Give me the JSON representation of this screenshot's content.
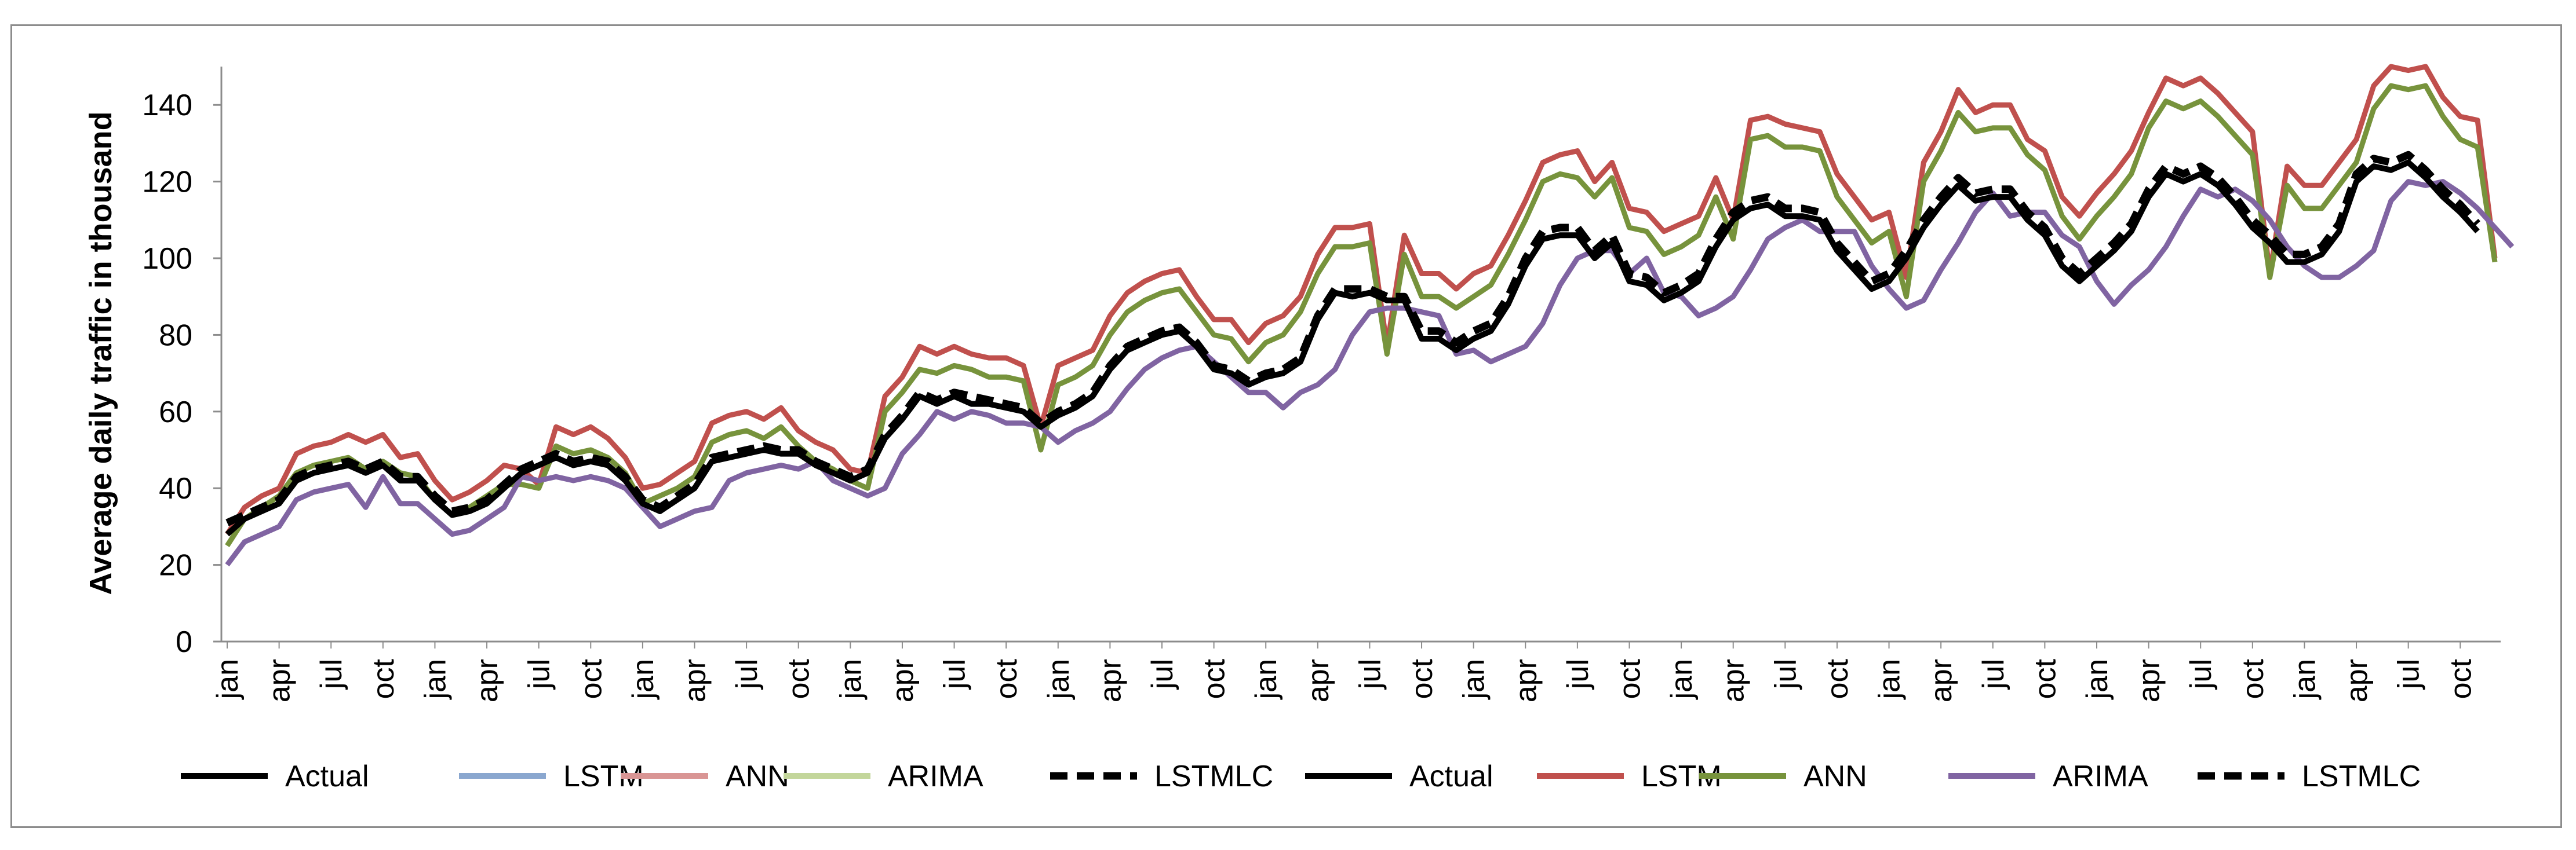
{
  "chart_data": {
    "type": "line",
    "title": "",
    "xlabel": "",
    "ylabel": "Average daily traffic in thousand",
    "ylim": [
      0,
      150
    ],
    "yticks": [
      0,
      20,
      40,
      60,
      80,
      100,
      120,
      140
    ],
    "grid": false,
    "legend_position": "bottom",
    "x_tick_labels": [
      "jan",
      "apr",
      "jul",
      "oct",
      "jan",
      "apr",
      "jul",
      "oct",
      "jan",
      "apr",
      "jul",
      "oct",
      "jan",
      "apr",
      "jul",
      "oct",
      "jan",
      "apr",
      "jul",
      "oct",
      "jan",
      "apr",
      "jul",
      "oct",
      "jan",
      "apr",
      "jul",
      "oct",
      "jan",
      "apr",
      "jul",
      "oct",
      "jan",
      "apr",
      "jul",
      "oct",
      "jan",
      "apr",
      "jul",
      "oct",
      "jan",
      "apr",
      "jul",
      "oct"
    ],
    "legend": [
      {
        "name": "Actual",
        "color": "#000000",
        "dash": false
      },
      {
        "name": "LSTM",
        "color": "#8aa7cf",
        "dash": false
      },
      {
        "name": "ANN",
        "color": "#d99594",
        "dash": false
      },
      {
        "name": "ARIMA",
        "color": "#c3d69b",
        "dash": false
      },
      {
        "name": "LSTMLC",
        "color": "#000000",
        "dash": true
      },
      {
        "name": "Actual",
        "color": "#000000",
        "dash": false
      },
      {
        "name": "LSTM",
        "color": "#c0504d",
        "dash": false
      },
      {
        "name": "ANN",
        "color": "#77933c",
        "dash": false
      },
      {
        "name": "ARIMA",
        "color": "#8064a2",
        "dash": false
      },
      {
        "name": "LSTMLC",
        "color": "#000000",
        "dash": true
      }
    ],
    "series": [
      {
        "name": "LSTM",
        "color": "#c0504d",
        "width": 9,
        "dash": false,
        "values": [
          28,
          35,
          38,
          40,
          49,
          51,
          52,
          54,
          52,
          54,
          48,
          49,
          42,
          37,
          39,
          42,
          46,
          45,
          41,
          56,
          54,
          56,
          53,
          48,
          40,
          41,
          44,
          47,
          57,
          59,
          60,
          58,
          61,
          55,
          52,
          50,
          45,
          44,
          64,
          69,
          77,
          75,
          77,
          75,
          74,
          74,
          72,
          56,
          72,
          74,
          76,
          85,
          91,
          94,
          96,
          97,
          90,
          84,
          84,
          78,
          83,
          85,
          90,
          101,
          108,
          108,
          109,
          77,
          106,
          96,
          96,
          92,
          96,
          98,
          106,
          115,
          125,
          127,
          128,
          120,
          125,
          113,
          112,
          107,
          109,
          111,
          121,
          110,
          136,
          137,
          135,
          134,
          133,
          122,
          116,
          110,
          112,
          95,
          125,
          133,
          144,
          138,
          140,
          140,
          131,
          128,
          116,
          111,
          117,
          122,
          128,
          138,
          147,
          145,
          147,
          143,
          138,
          133,
          96,
          124,
          119,
          119,
          125,
          131,
          145,
          150,
          149,
          150,
          142,
          137,
          136,
          100
        ]
      },
      {
        "name": "ANN",
        "color": "#77933c",
        "width": 9,
        "dash": false,
        "values": [
          25,
          32,
          35,
          38,
          44,
          46,
          47,
          48,
          45,
          47,
          44,
          43,
          37,
          33,
          35,
          38,
          41,
          41,
          40,
          51,
          49,
          50,
          48,
          44,
          36,
          38,
          40,
          43,
          52,
          54,
          55,
          53,
          56,
          51,
          47,
          45,
          42,
          40,
          60,
          65,
          71,
          70,
          72,
          71,
          69,
          69,
          68,
          50,
          67,
          69,
          72,
          80,
          86,
          89,
          91,
          92,
          86,
          80,
          79,
          73,
          78,
          80,
          86,
          96,
          103,
          103,
          104,
          75,
          101,
          90,
          90,
          87,
          90,
          93,
          101,
          110,
          120,
          122,
          121,
          116,
          121,
          108,
          107,
          101,
          103,
          106,
          116,
          105,
          131,
          132,
          129,
          129,
          128,
          116,
          110,
          104,
          107,
          90,
          120,
          128,
          138,
          133,
          134,
          134,
          127,
          123,
          111,
          105,
          111,
          116,
          122,
          134,
          141,
          139,
          141,
          137,
          132,
          127,
          95,
          119,
          113,
          113,
          119,
          125,
          139,
          145,
          144,
          145,
          137,
          131,
          129,
          99
        ]
      },
      {
        "name": "ARIMA",
        "color": "#8064a2",
        "width": 9,
        "dash": false,
        "values": [
          20,
          26,
          28,
          30,
          37,
          39,
          40,
          41,
          35,
          43,
          36,
          36,
          32,
          28,
          29,
          32,
          35,
          43,
          42,
          43,
          42,
          43,
          42,
          40,
          35,
          30,
          32,
          34,
          35,
          42,
          44,
          45,
          46,
          45,
          47,
          42,
          40,
          38,
          40,
          49,
          54,
          60,
          58,
          60,
          59,
          57,
          57,
          56,
          52,
          55,
          57,
          60,
          66,
          71,
          74,
          76,
          77,
          73,
          69,
          65,
          65,
          61,
          65,
          67,
          71,
          80,
          86,
          87,
          87,
          86,
          85,
          75,
          76,
          73,
          75,
          77,
          83,
          93,
          100,
          102,
          102,
          96,
          100,
          91,
          90,
          85,
          87,
          90,
          97,
          105,
          108,
          110,
          107,
          107,
          107,
          98,
          92,
          87,
          89,
          97,
          104,
          112,
          117,
          111,
          112,
          112,
          106,
          103,
          94,
          88,
          93,
          97,
          103,
          111,
          118,
          116,
          118,
          115,
          110,
          103,
          98,
          95,
          95,
          98,
          102,
          115,
          120,
          119,
          120,
          117,
          113,
          108,
          103
        ]
      },
      {
        "name": "Actual",
        "color": "#000000",
        "width": 10,
        "dash": false,
        "values": [
          28,
          32,
          34,
          36,
          42,
          44,
          45,
          46,
          44,
          46,
          42,
          42,
          37,
          33,
          34,
          36,
          40,
          44,
          46,
          48,
          46,
          47,
          46,
          42,
          36,
          34,
          37,
          40,
          47,
          48,
          49,
          50,
          49,
          49,
          46,
          44,
          42,
          44,
          53,
          58,
          64,
          62,
          64,
          62,
          62,
          61,
          60,
          56,
          59,
          61,
          64,
          71,
          76,
          78,
          80,
          81,
          77,
          71,
          70,
          67,
          69,
          70,
          73,
          84,
          91,
          90,
          91,
          89,
          89,
          79,
          79,
          76,
          79,
          81,
          88,
          98,
          105,
          106,
          106,
          100,
          104,
          94,
          93,
          89,
          91,
          94,
          103,
          110,
          113,
          114,
          111,
          111,
          110,
          102,
          97,
          92,
          94,
          100,
          108,
          114,
          119,
          115,
          116,
          116,
          110,
          106,
          98,
          94,
          98,
          102,
          107,
          116,
          122,
          120,
          122,
          119,
          114,
          108,
          104,
          99,
          99,
          101,
          107,
          120,
          124,
          123,
          125,
          121,
          116,
          112,
          107
        ]
      },
      {
        "name": "LSTMLC",
        "color": "#000000",
        "width": 13,
        "dash": true,
        "values": [
          31,
          33,
          35,
          37,
          43,
          45,
          46,
          47,
          45,
          47,
          43,
          43,
          38,
          34,
          35,
          37,
          41,
          45,
          47,
          49,
          47,
          48,
          47,
          43,
          37,
          35,
          38,
          41,
          48,
          49,
          50,
          51,
          50,
          50,
          47,
          45,
          43,
          45,
          54,
          59,
          65,
          63,
          65,
          64,
          63,
          62,
          61,
          57,
          60,
          62,
          65,
          72,
          77,
          79,
          81,
          82,
          78,
          72,
          71,
          68,
          70,
          71,
          74,
          85,
          92,
          92,
          92,
          90,
          90,
          81,
          81,
          78,
          81,
          83,
          90,
          100,
          107,
          108,
          108,
          102,
          106,
          96,
          95,
          91,
          93,
          96,
          105,
          112,
          115,
          116,
          113,
          113,
          112,
          104,
          99,
          94,
          96,
          102,
          110,
          116,
          121,
          117,
          118,
          118,
          112,
          108,
          100,
          96,
          100,
          104,
          109,
          118,
          124,
          122,
          124,
          121,
          116,
          110,
          106,
          101,
          101,
          103,
          109,
          122,
          126,
          125,
          127,
          123,
          118,
          114,
          109
        ]
      }
    ]
  }
}
